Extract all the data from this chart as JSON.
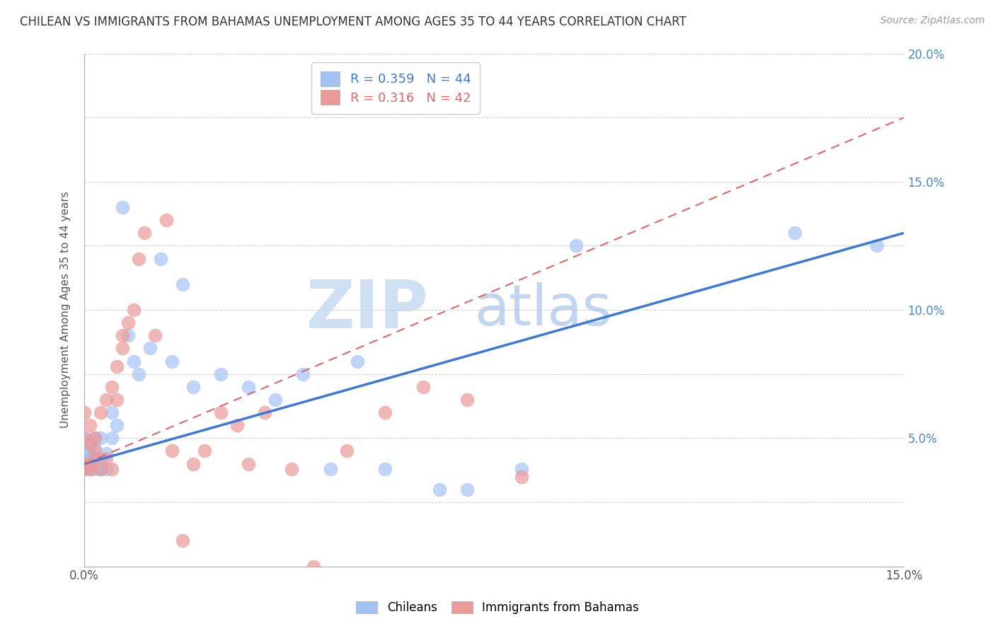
{
  "title": "CHILEAN VS IMMIGRANTS FROM BAHAMAS UNEMPLOYMENT AMONG AGES 35 TO 44 YEARS CORRELATION CHART",
  "source": "Source: ZipAtlas.com",
  "ylabel": "Unemployment Among Ages 35 to 44 years",
  "xlim": [
    0.0,
    0.15
  ],
  "ylim": [
    0.0,
    0.2
  ],
  "chilean_R": 0.359,
  "chilean_N": 44,
  "bahamas_R": 0.316,
  "bahamas_N": 42,
  "chilean_color": "#a4c2f4",
  "bahamas_color": "#ea9999",
  "chilean_line_color": "#3c78d8",
  "bahamas_line_color": "#e06666",
  "watermark_zip": "ZIP",
  "watermark_atlas": "atlas",
  "watermark_color_zip": "#c5d9f1",
  "watermark_color_atlas": "#a8c4e8",
  "background_color": "#ffffff",
  "chilean_x": [
    0.0,
    0.0,
    0.0,
    0.0,
    0.0,
    0.001,
    0.001,
    0.001,
    0.001,
    0.001,
    0.002,
    0.002,
    0.002,
    0.002,
    0.003,
    0.003,
    0.003,
    0.004,
    0.004,
    0.005,
    0.005,
    0.006,
    0.007,
    0.008,
    0.009,
    0.01,
    0.012,
    0.014,
    0.016,
    0.018,
    0.02,
    0.025,
    0.03,
    0.035,
    0.04,
    0.045,
    0.05,
    0.055,
    0.065,
    0.07,
    0.08,
    0.09,
    0.13,
    0.145
  ],
  "chilean_y": [
    0.04,
    0.045,
    0.05,
    0.042,
    0.038,
    0.042,
    0.048,
    0.04,
    0.044,
    0.038,
    0.05,
    0.04,
    0.046,
    0.038,
    0.042,
    0.05,
    0.038,
    0.044,
    0.038,
    0.06,
    0.05,
    0.055,
    0.14,
    0.09,
    0.08,
    0.075,
    0.085,
    0.12,
    0.08,
    0.11,
    0.07,
    0.075,
    0.07,
    0.065,
    0.075,
    0.038,
    0.08,
    0.038,
    0.03,
    0.03,
    0.038,
    0.125,
    0.13,
    0.125
  ],
  "bahamas_x": [
    0.0,
    0.0,
    0.0,
    0.0,
    0.001,
    0.001,
    0.001,
    0.001,
    0.002,
    0.002,
    0.002,
    0.003,
    0.003,
    0.004,
    0.004,
    0.005,
    0.005,
    0.006,
    0.006,
    0.007,
    0.007,
    0.008,
    0.009,
    0.01,
    0.011,
    0.013,
    0.015,
    0.016,
    0.018,
    0.02,
    0.022,
    0.025,
    0.028,
    0.03,
    0.033,
    0.038,
    0.042,
    0.048,
    0.055,
    0.062,
    0.07,
    0.08
  ],
  "bahamas_y": [
    0.04,
    0.05,
    0.06,
    0.038,
    0.04,
    0.055,
    0.038,
    0.048,
    0.05,
    0.045,
    0.042,
    0.06,
    0.038,
    0.065,
    0.042,
    0.07,
    0.038,
    0.078,
    0.065,
    0.085,
    0.09,
    0.095,
    0.1,
    0.12,
    0.13,
    0.09,
    0.135,
    0.045,
    0.01,
    0.04,
    0.045,
    0.06,
    0.055,
    0.04,
    0.06,
    0.038,
    0.0,
    0.045,
    0.06,
    0.07,
    0.065,
    0.035
  ],
  "chilean_line_x0": 0.0,
  "chilean_line_x1": 0.15,
  "chilean_line_y0": 0.04,
  "chilean_line_y1": 0.13,
  "bahamas_line_x0": 0.0,
  "bahamas_line_x1": 0.15,
  "bahamas_line_y0": 0.04,
  "bahamas_line_y1": 0.175
}
